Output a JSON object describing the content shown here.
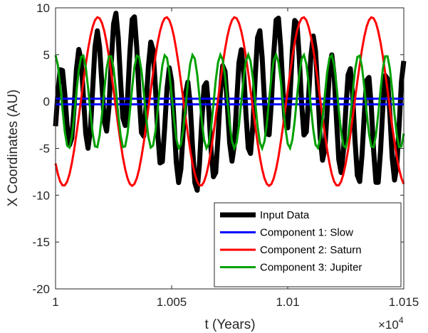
{
  "chart_data": {
    "type": "line",
    "xlabel": "t (Years)",
    "ylabel": "X Coordinates (AU)",
    "xlim": [
      10000,
      10150
    ],
    "ylim": [
      -20,
      10
    ],
    "x_multiplier_label": "×10",
    "x_multiplier_exponent": "4",
    "xticks": [
      10000,
      10050,
      10100,
      10150
    ],
    "xtick_labels": [
      "1",
      "1.005",
      "1.01",
      "1.015"
    ],
    "yticks": [
      -20,
      -15,
      -10,
      -5,
      0,
      5,
      10
    ],
    "ytick_labels": [
      "-20",
      "-15",
      "-10",
      "-5",
      "0",
      "5",
      "10"
    ],
    "grid": false,
    "legend_position": "bottom-right",
    "series": [
      {
        "name": "Input Data",
        "color": "#000000",
        "description": "sum of components",
        "x": [
          10000,
          10001,
          10002,
          10003,
          10004,
          10005,
          10006,
          10007,
          10008,
          10009,
          10010,
          10011,
          10012,
          10013,
          10014,
          10015,
          10016,
          10017,
          10018,
          10019,
          10020,
          10021,
          10022,
          10023,
          10024,
          10025,
          10026,
          10027,
          10028,
          10029,
          10030,
          10031,
          10032,
          10033,
          10034,
          10035,
          10036,
          10037,
          10038,
          10039,
          10040,
          10041,
          10042,
          10043,
          10044,
          10045,
          10046,
          10047,
          10048,
          10049,
          10050,
          10051,
          10052,
          10053,
          10054,
          10055,
          10056,
          10057,
          10058,
          10059,
          10060,
          10061,
          10062,
          10063,
          10064,
          10065,
          10066,
          10067,
          10068,
          10069,
          10070,
          10071,
          10072,
          10073,
          10074,
          10075,
          10076,
          10077,
          10078,
          10079,
          10080,
          10081,
          10082,
          10083,
          10084,
          10085,
          10086,
          10087,
          10088,
          10089,
          10090,
          10091,
          10092,
          10093,
          10094,
          10095,
          10096,
          10097,
          10098,
          10099,
          10100,
          10101,
          10102,
          10103,
          10104,
          10105,
          10106,
          10107,
          10108,
          10109,
          10110,
          10111,
          10112,
          10113,
          10114,
          10115,
          10116,
          10117,
          10118,
          10119,
          10120,
          10121,
          10122,
          10123,
          10124,
          10125,
          10126,
          10127,
          10128,
          10129,
          10130,
          10131,
          10132,
          10133,
          10134,
          10135,
          10136,
          10137,
          10138,
          10139,
          10140,
          10141,
          10142,
          10143,
          10144,
          10145,
          10146,
          10147,
          10148,
          10149,
          10150
        ],
        "y": [
          -2.64,
          1.01,
          3.39,
          3.31,
          0.8,
          -2.6,
          -4.64,
          -3.91,
          -0.58,
          3.41,
          5.56,
          4.42,
          0.61,
          -3.42,
          -4.99,
          -3.08,
          1.43,
          5.82,
          7.55,
          5.79,
          1.71,
          -2.13,
          -3.16,
          -0.59,
          4.19,
          8.29,
          9.42,
          6.87,
          2.2,
          -1.74,
          -2.56,
          0.37,
          5.16,
          8.77,
          9.04,
          5.68,
          0.54,
          -3.31,
          -3.7,
          -0.47,
          3.78,
          6.35,
          5.52,
          1.58,
          -3.31,
          -6.56,
          -6.41,
          -2.86,
          1.38,
          3.59,
          2.16,
          -1.99,
          -6.46,
          -8.65,
          -7.2,
          -3.12,
          0.83,
          2.08,
          -0.26,
          -4.77,
          -8.67,
          -9.47,
          -6.65,
          -2.0,
          1.6,
          2.02,
          -0.89,
          -5.15,
          -8.03,
          -7.59,
          -3.77,
          0.96,
          3.82,
          3.21,
          -0.35,
          -4.43,
          -6.37,
          -4.64,
          -0.1,
          4.14,
          5.53,
          3.24,
          -1.23,
          -4.97,
          -5.54,
          -2.52,
          2.65,
          6.81,
          7.56,
          4.74,
          0.07,
          -3.44,
          -3.55,
          0.05,
          5.11,
          8.7,
          8.9,
          5.81,
          1.03,
          -2.47,
          -2.81,
          0.61,
          5.4,
          8.65,
          8.33,
          4.64,
          -0.31,
          -3.58,
          -3.24,
          0.46,
          4.88,
          6.99,
          5.38,
          0.92,
          -3.84,
          -6.27,
          -5.04,
          -0.99,
          3.35,
          4.98,
          2.77,
          -1.91,
          -6.19,
          -7.58,
          -5.31,
          -0.9,
          2.85,
          3.51,
          0.57,
          -4.17,
          -7.89,
          -8.54,
          -5.77,
          -1.32,
          2.25,
          2.57,
          -0.61,
          -5.2,
          -8.62,
          -8.63,
          -5.23,
          -0.48,
          2.77,
          2.42,
          -1.29,
          -5.97,
          -8.38,
          -6.88,
          -2.48,
          2.13,
          4.33
        ]
      },
      {
        "name": "Component 1: Slow",
        "color": "#0000ff",
        "description": "two near-flat lines around 0",
        "levels": [
          0.3,
          -0.3
        ]
      },
      {
        "name": "Component 2: Saturn",
        "color": "#ff0000",
        "amplitude": 9.0,
        "period_years": 29.5
      },
      {
        "name": "Component 3: Jupiter",
        "color": "#00a000",
        "amplitude": 5.0,
        "period_years": 11.9
      }
    ]
  }
}
